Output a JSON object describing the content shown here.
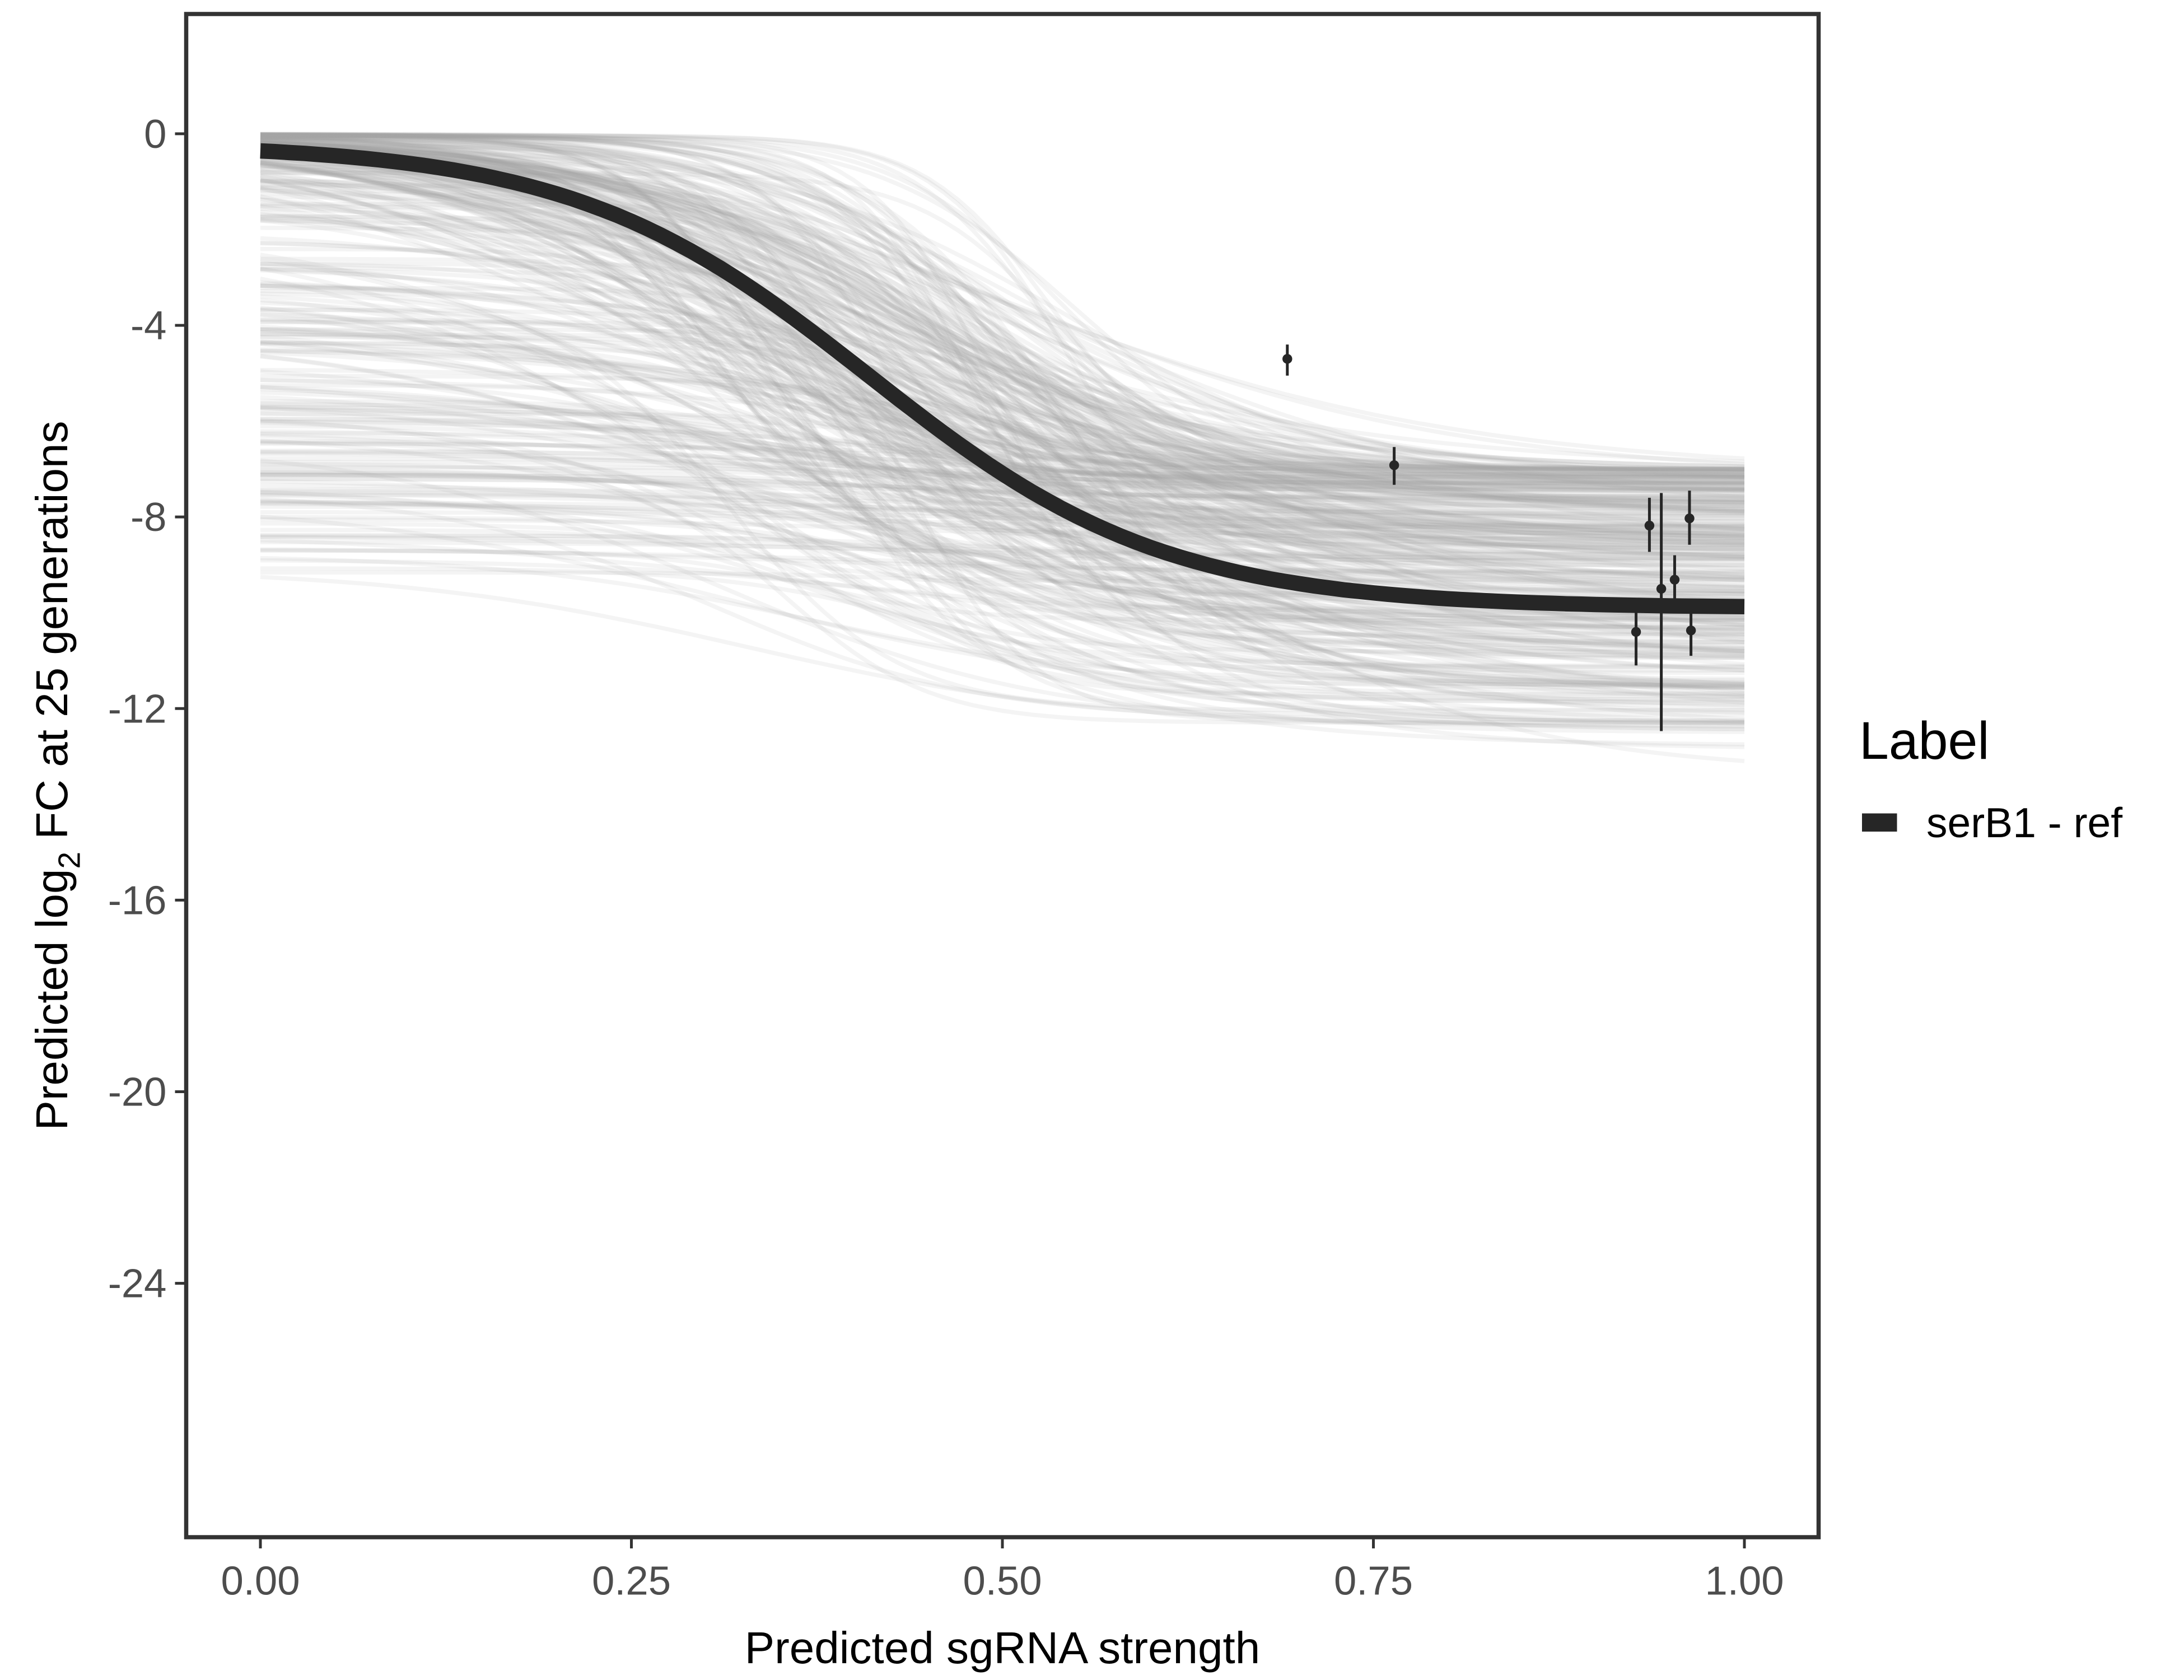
{
  "chart_data": {
    "type": "line",
    "title": "",
    "xlabel": "Predicted sgRNA strength",
    "ylabel_prefix": "Predicted  log",
    "ylabel_sub": "2",
    "ylabel_suffix": " FC at 25 generations",
    "xlim": [
      -0.05,
      1.05
    ],
    "ylim": [
      -29.3,
      2.5
    ],
    "x_ticks": [
      0,
      0.25,
      0.5,
      0.75,
      1
    ],
    "x_tick_labels": [
      "0.00",
      "0.25",
      "0.50",
      "0.75",
      "1.00"
    ],
    "y_ticks": [
      0,
      -4,
      -8,
      -12,
      -16,
      -20,
      -24
    ],
    "y_tick_labels": [
      "0",
      "-4",
      "-8",
      "-12",
      "-16",
      "-20",
      "-24"
    ],
    "grid": false,
    "legend": {
      "title": "Label",
      "position": "right",
      "entries": [
        {
          "label": "serB1 - ref",
          "color": "#262626"
        }
      ]
    },
    "main_curve": {
      "name": "serB1 - ref",
      "form": "sigmoid",
      "upper": -0.2,
      "lower": -9.9,
      "midpoint": 0.41,
      "scale": 0.1,
      "color": "#262626"
    },
    "posterior_curves": {
      "count": 350,
      "color": "#a6a6a6",
      "opacity": 0.12
    },
    "points": [
      {
        "x": 0.692,
        "y": -4.7,
        "ymin": -5.05,
        "ymax": -4.4
      },
      {
        "x": 0.764,
        "y": -6.92,
        "ymin": -7.33,
        "ymax": -6.54
      },
      {
        "x": 0.936,
        "y": -8.18,
        "ymin": -8.73,
        "ymax": -7.6
      },
      {
        "x": 0.963,
        "y": -8.03,
        "ymin": -8.58,
        "ymax": -7.45
      },
      {
        "x": 0.953,
        "y": -9.31,
        "ymin": -9.84,
        "ymax": -8.8
      },
      {
        "x": 0.944,
        "y": -9.5,
        "ymin": -12.47,
        "ymax": -7.5
      },
      {
        "x": 0.927,
        "y": -10.4,
        "ymin": -11.1,
        "ymax": -9.8
      },
      {
        "x": 0.964,
        "y": -10.37,
        "ymin": -10.9,
        "ymax": -9.8
      }
    ]
  }
}
